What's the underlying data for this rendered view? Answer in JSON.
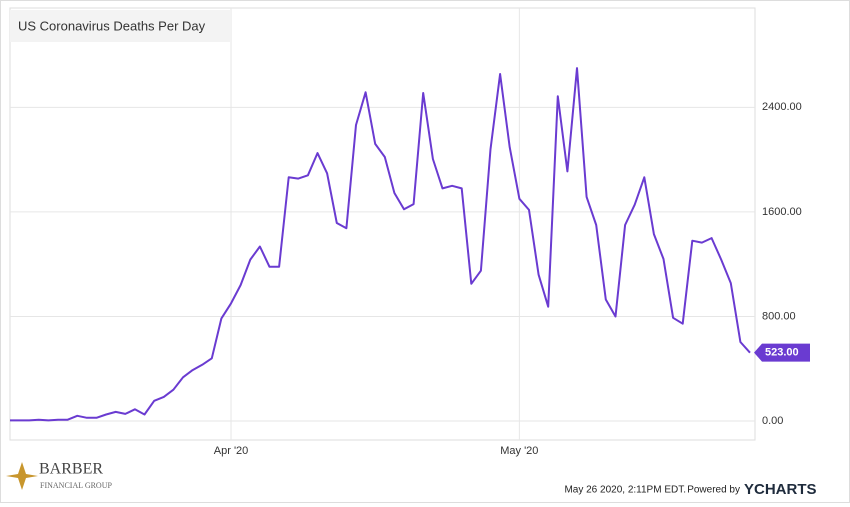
{
  "chart_data": {
    "type": "line",
    "title": "US Coronavirus Deaths Per Day",
    "categories": [
      null,
      null,
      null,
      null,
      null,
      null,
      null,
      null,
      null,
      null,
      null,
      null,
      null,
      null,
      null,
      null,
      null,
      null,
      null,
      null,
      null,
      null,
      null,
      "Apr '20",
      null,
      null,
      null,
      null,
      null,
      null,
      null,
      null,
      null,
      null,
      null,
      null,
      null,
      null,
      null,
      null,
      null,
      null,
      null,
      null,
      null,
      null,
      null,
      null,
      null,
      null,
      null,
      null,
      null,
      "May '20",
      null,
      null,
      null,
      null,
      null,
      null,
      null,
      null,
      null,
      null,
      null,
      null,
      null,
      null,
      null,
      null,
      null,
      null,
      null,
      null,
      null,
      null,
      null,
      null
    ],
    "series": [
      {
        "name": "US Coronavirus Deaths Per Day",
        "color": "#6a3bd1",
        "values": [
          5,
          5,
          5,
          10,
          5,
          10,
          10,
          40,
          25,
          25,
          50,
          70,
          55,
          90,
          50,
          155,
          185,
          240,
          335,
          390,
          430,
          480,
          785,
          900,
          1040,
          1235,
          1335,
          1180,
          1180,
          1865,
          1855,
          1880,
          2050,
          1895,
          1515,
          1475,
          2265,
          2515,
          2120,
          2020,
          1745,
          1620,
          1660,
          2510,
          2005,
          1780,
          1800,
          1780,
          1050,
          1150,
          2080,
          2655,
          2095,
          1700,
          1615,
          1120,
          875,
          2485,
          1910,
          2700,
          1715,
          1500,
          930,
          800,
          1500,
          1655,
          1865,
          1430,
          1240,
          790,
          745,
          1380,
          1365,
          1400,
          1235,
          1055,
          605,
          523
        ],
        "value_labels": [
          null,
          null,
          null,
          null,
          null,
          null,
          null,
          null,
          null,
          null,
          null,
          null,
          null,
          null,
          null,
          null,
          null,
          null,
          null,
          null,
          null,
          null,
          null,
          null,
          null,
          null,
          null,
          null,
          null,
          null,
          null,
          null,
          null,
          null,
          null,
          null,
          null,
          null,
          null,
          null,
          null,
          null,
          null,
          null,
          null,
          null,
          null,
          null,
          null,
          null,
          null,
          null,
          null,
          null,
          null,
          null,
          null,
          null,
          null,
          null,
          null,
          null,
          null,
          null,
          null,
          null,
          null,
          null,
          null,
          null,
          null,
          null,
          null,
          null,
          null,
          null,
          null,
          "523.00"
        ]
      }
    ],
    "ylim": [
      -145,
      3160
    ],
    "yticks": [
      {
        "value": 0,
        "label": "0.00"
      },
      {
        "value": 800,
        "label": "800.00"
      },
      {
        "value": 1600,
        "label": "1600.00"
      },
      {
        "value": 2400,
        "label": "2400.00"
      }
    ],
    "grid": true
  },
  "logo": {
    "name": "BARBER",
    "tagline": "FINANCIAL GROUP"
  },
  "footer": {
    "timestamp": "May 26 2020, 2:11PM EDT.",
    "powered_by": "Powered by",
    "brand": "YCHARTS"
  }
}
